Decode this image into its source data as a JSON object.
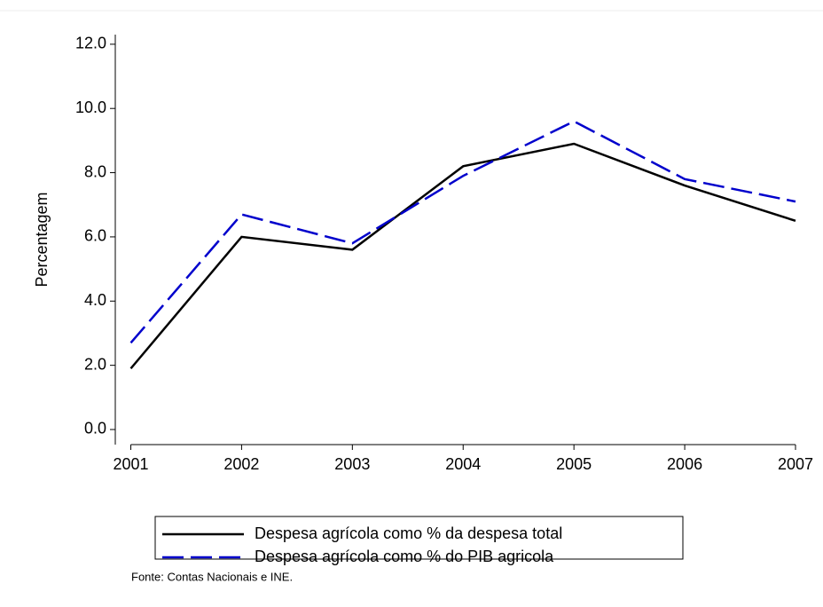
{
  "chart_data": {
    "type": "line",
    "x": [
      2001,
      2002,
      2003,
      2004,
      2005,
      2006,
      2007
    ],
    "series": [
      {
        "name": "Despesa agrícola como % da despesa total",
        "color": "#000000",
        "dash": "solid",
        "values": [
          1.9,
          6.0,
          5.6,
          8.2,
          8.9,
          7.6,
          6.5
        ]
      },
      {
        "name": "Despesa agrícola como % do PIB agricola",
        "color": "#0000cc",
        "dash": "dashed",
        "values": [
          2.7,
          6.7,
          5.8,
          7.9,
          9.6,
          7.8,
          7.1
        ]
      }
    ],
    "ylabel": "Percentagem",
    "source": "Fonte: Contas Nacionais e INE.",
    "xlim": [
      2000.86,
      2007
    ],
    "ylim": [
      -0.47,
      12.3
    ],
    "xticks": [
      2001,
      2002,
      2003,
      2004,
      2005,
      2006,
      2007
    ],
    "yticks": [
      {
        "value": 0,
        "label": "0.0"
      },
      {
        "value": 2,
        "label": "2.0"
      },
      {
        "value": 4,
        "label": "4.0"
      },
      {
        "value": 6,
        "label": "6.0"
      },
      {
        "value": 8,
        "label": "8.0"
      },
      {
        "value": 10,
        "label": "10.0"
      },
      {
        "value": 12,
        "label": "12.0"
      }
    ],
    "grid": false,
    "legend": "bottom"
  }
}
